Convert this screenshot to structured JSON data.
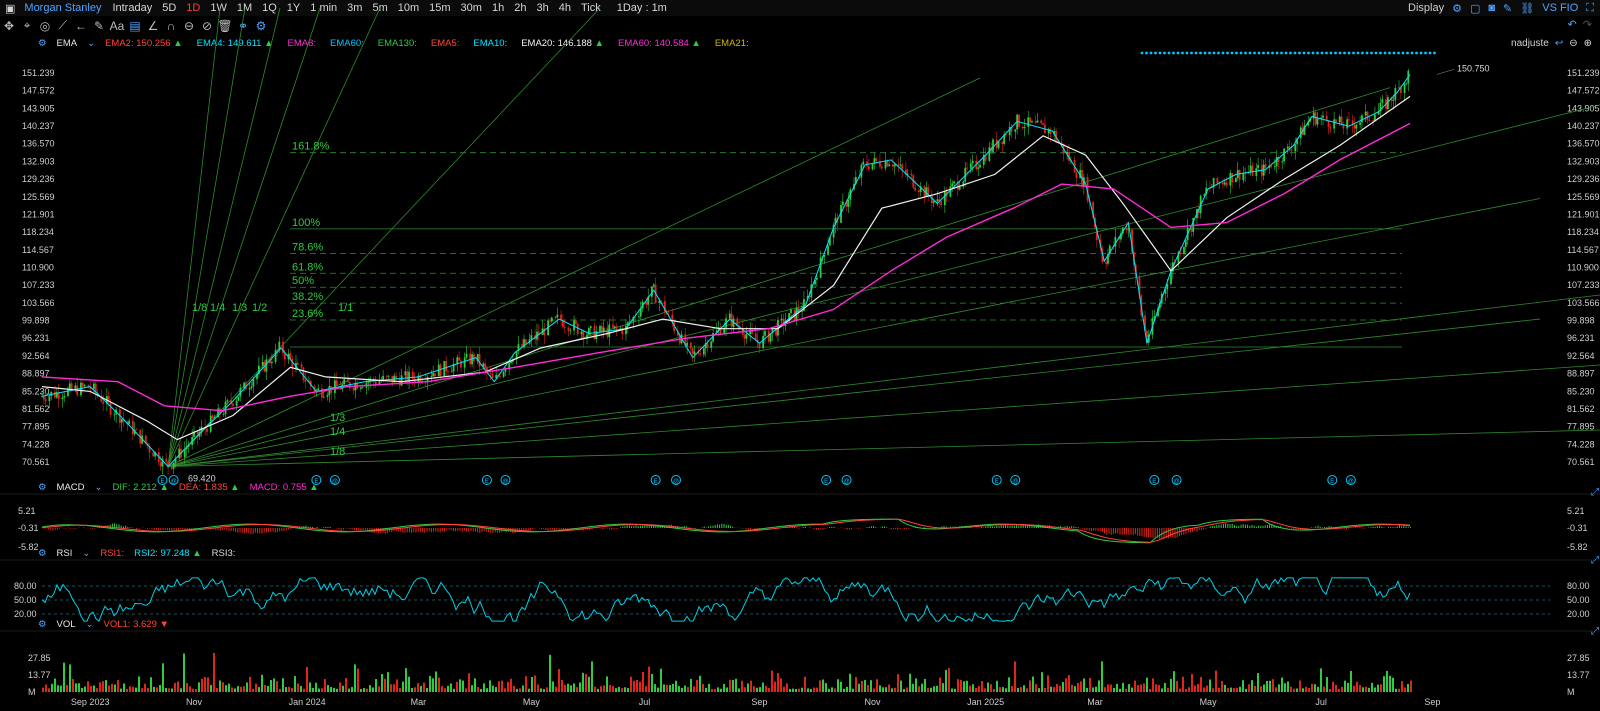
{
  "menu": {
    "symbol": "Morgan Stanley",
    "periods": [
      "Intraday",
      "5D",
      "1D",
      "1W",
      "1M",
      "1Q",
      "1Y",
      "1 min",
      "3m",
      "5m",
      "10m",
      "15m",
      "30m",
      "1h",
      "2h",
      "3h",
      "4h",
      "Tick"
    ],
    "active_period": "1D",
    "interval": "1Day : 1m",
    "display": "Display",
    "right_label": "VS FIO"
  },
  "toolbar_icons": [
    "move-icon",
    "crosshair-icon",
    "circle-icon",
    "line-tool-icon",
    "arrow-icon",
    "pen-icon",
    "text-icon",
    "comment-icon",
    "angle-icon",
    "magnet-icon",
    "ring-icon",
    "hide-icon",
    "trash-icon",
    "link-icon",
    "settings-icon"
  ],
  "main_indicator": {
    "name": "EMA",
    "items": [
      {
        "label": "EMA2:",
        "value": "150.256",
        "color": "#ff453a",
        "arrow": "▲"
      },
      {
        "label": "EMA4:",
        "value": "149.611",
        "color": "#00e5ff",
        "arrow": "▲"
      },
      {
        "label": "EMA8:",
        "value": "",
        "color": "#ff2bd6",
        "arrow": ""
      },
      {
        "label": "EMA60:",
        "value": "",
        "color": "#00c8ff",
        "arrow": ""
      },
      {
        "label": "EMA130:",
        "value": "",
        "color": "#2ecc40",
        "arrow": ""
      },
      {
        "label": "EMA5:",
        "value": "",
        "color": "#ff453a",
        "arrow": ""
      },
      {
        "label": "EMA10:",
        "value": "",
        "color": "#00e5ff",
        "arrow": ""
      },
      {
        "label": "EMA20:",
        "value": "146.188",
        "color": "#f2f2f2",
        "arrow": "▲"
      },
      {
        "label": "EMA60:",
        "value": "140.584",
        "color": "#ff2bd6",
        "arrow": "▲"
      },
      {
        "label": "EMA21:",
        "value": "",
        "color": "#c9b800",
        "arrow": ""
      }
    ],
    "adjust": "nadjuste"
  },
  "macd": {
    "name": "MACD",
    "dif_label": "DIF:",
    "dif": "2.212",
    "dea_label": "DEA:",
    "dea": "1.835",
    "macd_label": "MACD:",
    "macd": "0.755"
  },
  "rsi": {
    "name": "RSI",
    "rsi1": "RSI1:",
    "rsi2_label": "RSI2:",
    "rsi2": "97.248",
    "rsi3": "RSI3:"
  },
  "vol": {
    "name": "VOL",
    "vol1_label": "VOL1:",
    "vol1": "3.629"
  },
  "chart_data": {
    "type": "line",
    "title": "Morgan Stanley",
    "y_ticks": [
      "151.239",
      "147.572",
      "143.905",
      "140.237",
      "136.570",
      "132.903",
      "129.236",
      "125.569",
      "121.901",
      "118.234",
      "114.567",
      "110.900",
      "107.233",
      "103.566",
      "99.898",
      "96.231",
      "92.564",
      "88.897",
      "85.230",
      "81.562",
      "77.895",
      "74.228",
      "70.561"
    ],
    "x_ticks": [
      "Sep 2023",
      "Nov",
      "Jan 2024",
      "Mar",
      "May",
      "Jul",
      "Sep",
      "Nov",
      "Jan 2025",
      "Mar",
      "May",
      "Jul",
      "Sep"
    ],
    "ylim": [
      68.5,
      153
    ],
    "low_label": "69.420",
    "high_label": "150.750",
    "series": [
      {
        "name": "Price",
        "color": "#3fbf3f",
        "points": [
          [
            "2023-08-20",
            84
          ],
          [
            "2023-09-15",
            86
          ],
          [
            "2023-10-01",
            80
          ],
          [
            "2023-10-27",
            69.42
          ],
          [
            "2023-11-15",
            77
          ],
          [
            "2023-12-01",
            83
          ],
          [
            "2023-12-27",
            94
          ],
          [
            "2024-01-15",
            85
          ],
          [
            "2024-02-10",
            87
          ],
          [
            "2024-03-10",
            88
          ],
          [
            "2024-04-10",
            92
          ],
          [
            "2024-04-20",
            87
          ],
          [
            "2024-05-01",
            93
          ],
          [
            "2024-05-25",
            100
          ],
          [
            "2024-06-10",
            97
          ],
          [
            "2024-06-30",
            98
          ],
          [
            "2024-07-15",
            106
          ],
          [
            "2024-08-05",
            92
          ],
          [
            "2024-08-25",
            100
          ],
          [
            "2024-09-10",
            95
          ],
          [
            "2024-10-05",
            103
          ],
          [
            "2024-10-20",
            119
          ],
          [
            "2024-11-06",
            132
          ],
          [
            "2024-11-20",
            133
          ],
          [
            "2024-12-15",
            124
          ],
          [
            "2025-01-10",
            134
          ],
          [
            "2025-01-27",
            141
          ],
          [
            "2025-02-15",
            139
          ],
          [
            "2025-03-05",
            128
          ],
          [
            "2025-03-15",
            112
          ],
          [
            "2025-03-28",
            120
          ],
          [
            "2025-04-07",
            95
          ],
          [
            "2025-04-20",
            110
          ],
          [
            "2025-05-10",
            127
          ],
          [
            "2025-05-25",
            130
          ],
          [
            "2025-06-10",
            131
          ],
          [
            "2025-06-25",
            136
          ],
          [
            "2025-07-05",
            142
          ],
          [
            "2025-07-25",
            140
          ],
          [
            "2025-08-10",
            143
          ],
          [
            "2025-08-20",
            147
          ],
          [
            "2025-08-27",
            150.75
          ]
        ]
      },
      {
        "name": "EMA20",
        "color": "#f2f2f2",
        "points": [
          [
            "2023-08-20",
            86
          ],
          [
            "2023-09-15",
            85
          ],
          [
            "2023-10-15",
            79
          ],
          [
            "2023-11-01",
            75
          ],
          [
            "2023-12-01",
            80
          ],
          [
            "2024-01-01",
            90
          ],
          [
            "2024-01-20",
            88
          ],
          [
            "2024-03-01",
            87
          ],
          [
            "2024-04-15",
            89
          ],
          [
            "2024-05-15",
            94
          ],
          [
            "2024-06-20",
            97
          ],
          [
            "2024-07-20",
            100
          ],
          [
            "2024-08-20",
            98
          ],
          [
            "2024-09-20",
            98
          ],
          [
            "2024-10-20",
            107
          ],
          [
            "2024-11-15",
            123
          ],
          [
            "2024-12-15",
            126
          ],
          [
            "2025-01-15",
            130
          ],
          [
            "2025-02-10",
            138
          ],
          [
            "2025-03-05",
            134
          ],
          [
            "2025-03-25",
            124
          ],
          [
            "2025-04-20",
            110
          ],
          [
            "2025-05-20",
            121
          ],
          [
            "2025-06-20",
            129
          ],
          [
            "2025-07-20",
            136
          ],
          [
            "2025-08-27",
            146.188
          ]
        ]
      },
      {
        "name": "EMA60",
        "color": "#ff2bd6",
        "points": [
          [
            "2023-08-20",
            88
          ],
          [
            "2023-09-30",
            87
          ],
          [
            "2023-10-25",
            82
          ],
          [
            "2023-11-25",
            81
          ],
          [
            "2024-01-01",
            84
          ],
          [
            "2024-02-01",
            86
          ],
          [
            "2024-03-15",
            87
          ],
          [
            "2024-05-01",
            90
          ],
          [
            "2024-06-15",
            93
          ],
          [
            "2024-08-01",
            96
          ],
          [
            "2024-09-15",
            98
          ],
          [
            "2024-10-20",
            102
          ],
          [
            "2024-11-20",
            110
          ],
          [
            "2024-12-20",
            117
          ],
          [
            "2025-01-25",
            123
          ],
          [
            "2025-02-20",
            128
          ],
          [
            "2025-03-20",
            127
          ],
          [
            "2025-04-20",
            119
          ],
          [
            "2025-05-20",
            120
          ],
          [
            "2025-06-20",
            126
          ],
          [
            "2025-07-20",
            133
          ],
          [
            "2025-08-27",
            140.584
          ]
        ]
      }
    ],
    "fib_levels": [
      "161.8%",
      "100%",
      "78.6%",
      "61.8%",
      "50%",
      "38.2%",
      "23.6%"
    ],
    "fan_labels": [
      "1/8",
      "1/4",
      "1/3",
      "1/2",
      "1/1",
      "1/3",
      "1/4",
      "1/8"
    ],
    "macd_ticks": [
      "5.21",
      "-0.31",
      "-5.82"
    ],
    "rsi_ticks": [
      "80.00",
      "50.00",
      "20.00"
    ],
    "vol_ticks": [
      "27.85",
      "13.77",
      "M"
    ]
  }
}
